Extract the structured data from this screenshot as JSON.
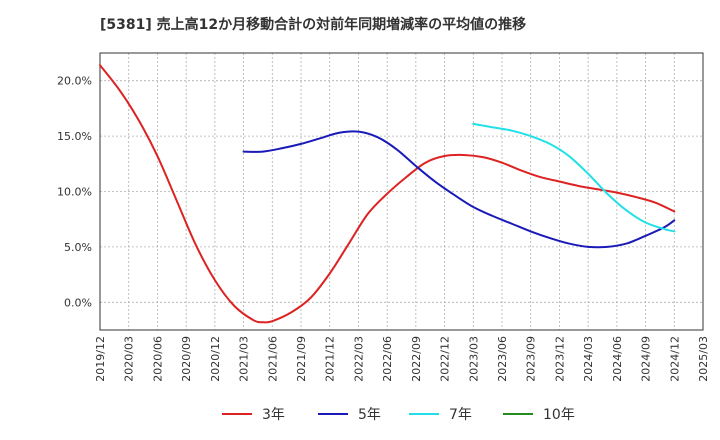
{
  "chart_data": {
    "type": "line",
    "title": "[5381]  売上高12か月移動合計の対前年同期増減率の平均値の推移",
    "xlabel": "",
    "ylabel": "",
    "ylim": [
      -2.5,
      22.5
    ],
    "yticks": [
      0,
      5,
      10,
      15,
      20
    ],
    "ytick_labels": [
      "0.0%",
      "5.0%",
      "10.0%",
      "15.0%",
      "20.0%"
    ],
    "xlim": [
      "2019-12",
      "2025-03"
    ],
    "xtick_labels": [
      "2019/12",
      "2020/03",
      "2020/06",
      "2020/09",
      "2020/12",
      "2021/03",
      "2021/06",
      "2021/09",
      "2021/12",
      "2022/03",
      "2022/06",
      "2022/09",
      "2022/12",
      "2023/03",
      "2023/06",
      "2023/09",
      "2023/12",
      "2024/03",
      "2024/06",
      "2024/09",
      "2024/12",
      "2025/03"
    ],
    "grid": true,
    "legend": "bottom",
    "series": [
      {
        "name": "3年",
        "color": "#dd2222",
        "points": [
          [
            "2019-12",
            21.4
          ],
          [
            "2020-02",
            19.2
          ],
          [
            "2020-04",
            16.5
          ],
          [
            "2020-06",
            13.2
          ],
          [
            "2020-08",
            9.2
          ],
          [
            "2020-10",
            5.2
          ],
          [
            "2020-12",
            2.0
          ],
          [
            "2021-02",
            -0.3
          ],
          [
            "2021-04",
            -1.6
          ],
          [
            "2021-05",
            -1.8
          ],
          [
            "2021-06",
            -1.7
          ],
          [
            "2021-08",
            -0.9
          ],
          [
            "2021-10",
            0.4
          ],
          [
            "2021-12",
            2.6
          ],
          [
            "2022-02",
            5.3
          ],
          [
            "2022-04",
            8.0
          ],
          [
            "2022-06",
            9.8
          ],
          [
            "2022-08",
            11.3
          ],
          [
            "2022-10",
            12.6
          ],
          [
            "2022-12",
            13.2
          ],
          [
            "2023-02",
            13.3
          ],
          [
            "2023-04",
            13.1
          ],
          [
            "2023-06",
            12.6
          ],
          [
            "2023-08",
            11.9
          ],
          [
            "2023-10",
            11.3
          ],
          [
            "2023-12",
            10.9
          ],
          [
            "2024-02",
            10.5
          ],
          [
            "2024-04",
            10.2
          ],
          [
            "2024-06",
            9.9
          ],
          [
            "2024-08",
            9.5
          ],
          [
            "2024-10",
            9.0
          ],
          [
            "2024-12",
            8.2
          ]
        ]
      },
      {
        "name": "5年",
        "color": "#1a1ab8",
        "points": [
          [
            "2021-03",
            13.6
          ],
          [
            "2021-05",
            13.6
          ],
          [
            "2021-07",
            13.9
          ],
          [
            "2021-09",
            14.3
          ],
          [
            "2021-11",
            14.8
          ],
          [
            "2022-01",
            15.3
          ],
          [
            "2022-03",
            15.4
          ],
          [
            "2022-05",
            14.9
          ],
          [
            "2022-07",
            13.8
          ],
          [
            "2022-09",
            12.3
          ],
          [
            "2022-11",
            10.9
          ],
          [
            "2023-01",
            9.7
          ],
          [
            "2023-03",
            8.6
          ],
          [
            "2023-05",
            7.8
          ],
          [
            "2023-07",
            7.1
          ],
          [
            "2023-09",
            6.4
          ],
          [
            "2023-11",
            5.8
          ],
          [
            "2024-01",
            5.3
          ],
          [
            "2024-03",
            5.0
          ],
          [
            "2024-05",
            5.0
          ],
          [
            "2024-07",
            5.3
          ],
          [
            "2024-09",
            6.0
          ],
          [
            "2024-11",
            6.8
          ],
          [
            "2024-12",
            7.4
          ]
        ]
      },
      {
        "name": "7年",
        "color": "#22e0e8",
        "points": [
          [
            "2023-03",
            16.1
          ],
          [
            "2023-05",
            15.8
          ],
          [
            "2023-07",
            15.5
          ],
          [
            "2023-09",
            15.0
          ],
          [
            "2023-11",
            14.3
          ],
          [
            "2024-01",
            13.2
          ],
          [
            "2024-03",
            11.6
          ],
          [
            "2024-05",
            9.8
          ],
          [
            "2024-07",
            8.3
          ],
          [
            "2024-09",
            7.2
          ],
          [
            "2024-11",
            6.6
          ],
          [
            "2024-12",
            6.4
          ]
        ]
      },
      {
        "name": "10年",
        "color": "#228b22",
        "points": []
      }
    ]
  }
}
